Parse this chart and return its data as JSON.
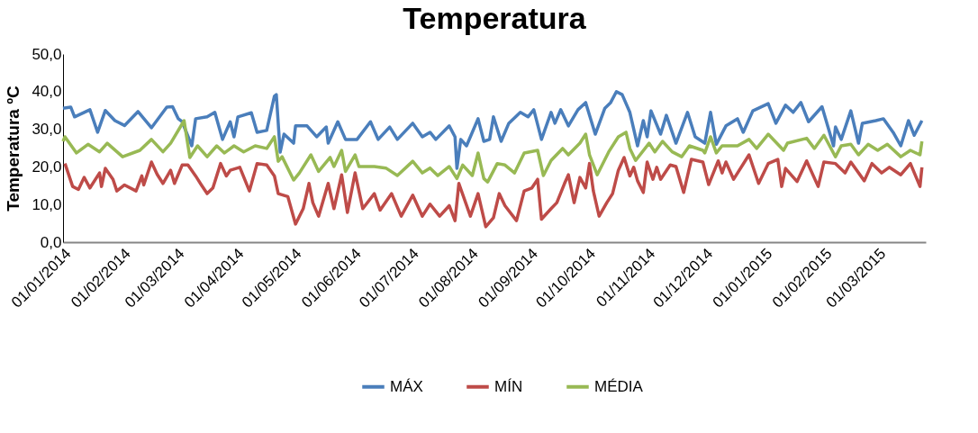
{
  "chart_data": {
    "type": "line",
    "title": "Temperatura",
    "ylabel": "Temperatura ºC",
    "xlim": [
      "2014-01-01",
      "2015-03-26"
    ],
    "ylim": [
      0,
      50
    ],
    "yticks": [
      {
        "value": 0,
        "label": "0,0"
      },
      {
        "value": 10,
        "label": "10,0"
      },
      {
        "value": 20,
        "label": "20,0"
      },
      {
        "value": 30,
        "label": "30,0"
      },
      {
        "value": 40,
        "label": "40,0"
      },
      {
        "value": 50,
        "label": "50,0"
      }
    ],
    "xticks": [
      {
        "value": "2014-01-01",
        "label": "01/01/2014"
      },
      {
        "value": "2014-02-01",
        "label": "01/02/2014"
      },
      {
        "value": "2014-03-01",
        "label": "01/03/2014"
      },
      {
        "value": "2014-04-01",
        "label": "01/04/2014"
      },
      {
        "value": "2014-05-01",
        "label": "01/05/2014"
      },
      {
        "value": "2014-06-01",
        "label": "01/06/2014"
      },
      {
        "value": "2014-07-01",
        "label": "01/07/2014"
      },
      {
        "value": "2014-08-01",
        "label": "01/08/2014"
      },
      {
        "value": "2014-09-01",
        "label": "01/09/2014"
      },
      {
        "value": "2014-10-01",
        "label": "01/10/2014"
      },
      {
        "value": "2014-11-01",
        "label": "01/11/2014"
      },
      {
        "value": "2014-12-01",
        "label": "01/12/2014"
      },
      {
        "value": "2015-01-01",
        "label": "01/01/2015"
      },
      {
        "value": "2015-02-01",
        "label": "01/02/2015"
      },
      {
        "value": "2015-03-01",
        "label": "01/03/2015"
      }
    ],
    "grid": false,
    "legend": "bottom",
    "line_style": "solid",
    "marker": "none",
    "series": [
      {
        "name": "MÁX",
        "color": "#4a7ebb",
        "x": [
          "2014-01-01",
          "2014-01-05",
          "2014-01-07",
          "2014-01-15",
          "2014-01-19",
          "2014-01-23",
          "2014-01-28",
          "2014-02-02",
          "2014-02-09",
          "2014-02-16",
          "2014-02-24",
          "2014-02-27",
          "2014-03-02",
          "2014-03-04",
          "2014-03-09",
          "2014-03-11",
          "2014-03-17",
          "2014-03-21",
          "2014-03-25",
          "2014-03-29",
          "2014-03-31",
          "2014-04-02",
          "2014-04-09",
          "2014-04-12",
          "2014-04-17",
          "2014-04-21",
          "2014-04-22",
          "2014-04-24",
          "2014-04-26",
          "2014-05-01",
          "2014-05-02",
          "2014-05-08",
          "2014-05-13",
          "2014-05-18",
          "2014-05-19",
          "2014-05-24",
          "2014-05-28",
          "2014-06-03",
          "2014-06-10",
          "2014-06-14",
          "2014-06-20",
          "2014-06-24",
          "2014-07-02",
          "2014-07-07",
          "2014-07-11",
          "2014-07-14",
          "2014-07-21",
          "2014-07-24",
          "2014-07-25",
          "2014-07-27",
          "2014-07-30",
          "2014-08-05",
          "2014-08-08",
          "2014-08-11",
          "2014-08-13",
          "2014-08-17",
          "2014-08-21",
          "2014-08-27",
          "2014-08-31",
          "2014-09-03",
          "2014-09-07",
          "2014-09-12",
          "2014-09-14",
          "2014-09-17",
          "2014-09-21",
          "2014-09-26",
          "2014-09-30",
          "2014-10-05",
          "2014-10-10",
          "2014-10-13",
          "2014-10-16",
          "2014-10-19",
          "2014-10-23",
          "2014-10-27",
          "2014-10-30",
          "2014-11-01",
          "2014-11-03",
          "2014-11-08",
          "2014-11-11",
          "2014-11-16",
          "2014-11-22",
          "2014-11-26",
          "2014-12-01",
          "2014-12-04",
          "2014-12-07",
          "2014-12-12",
          "2014-12-18",
          "2014-12-21",
          "2014-12-26",
          "2015-01-03",
          "2015-01-07",
          "2015-01-12",
          "2015-01-16",
          "2015-01-20",
          "2015-01-24",
          "2015-01-31",
          "2015-02-06",
          "2015-02-07",
          "2015-02-10",
          "2015-02-15",
          "2015-02-19",
          "2015-02-21",
          "2015-02-28",
          "2015-03-04",
          "2015-03-09",
          "2015-03-13",
          "2015-03-17",
          "2015-03-20",
          "2015-03-24"
        ],
        "values": [
          35.6,
          35.9,
          33.3,
          35.2,
          29.2,
          35.0,
          32.3,
          31.0,
          34.7,
          30.4,
          35.9,
          36.0,
          32.8,
          32.0,
          25.6,
          32.8,
          33.3,
          34.5,
          27.3,
          32.0,
          28.0,
          33.3,
          34.4,
          29.2,
          29.7,
          38.8,
          39.2,
          23.9,
          28.7,
          26.3,
          30.9,
          30.9,
          28.0,
          30.6,
          26.3,
          32.0,
          27.3,
          27.3,
          32.0,
          27.3,
          30.6,
          27.3,
          31.6,
          28.0,
          29.2,
          27.3,
          30.9,
          28.0,
          19.6,
          27.3,
          25.6,
          32.8,
          26.8,
          27.3,
          33.3,
          26.8,
          31.6,
          34.5,
          33.3,
          35.2,
          27.3,
          34.5,
          31.6,
          35.2,
          30.9,
          35.2,
          37.1,
          28.7,
          35.6,
          37.1,
          40.0,
          39.2,
          34.5,
          25.6,
          32.3,
          28.0,
          34.9,
          28.7,
          33.7,
          26.3,
          34.5,
          28.0,
          26.3,
          34.5,
          26.0,
          30.9,
          32.8,
          29.2,
          34.9,
          36.8,
          31.6,
          36.4,
          34.5,
          37.1,
          32.0,
          36.0,
          25.6,
          30.6,
          27.3,
          34.9,
          26.3,
          31.6,
          32.3,
          32.8,
          29.2,
          25.6,
          32.3,
          28.4,
          32.3
        ]
      },
      {
        "name": "MÍN",
        "color": "#be4b48",
        "x": [
          "2014-01-02",
          "2014-01-06",
          "2014-01-09",
          "2014-01-12",
          "2014-01-15",
          "2014-01-20",
          "2014-01-21",
          "2014-01-23",
          "2014-01-27",
          "2014-01-29",
          "2014-02-02",
          "2014-02-08",
          "2014-02-11",
          "2014-02-12",
          "2014-02-16",
          "2014-02-19",
          "2014-02-22",
          "2014-02-26",
          "2014-02-28",
          "2014-03-04",
          "2014-03-07",
          "2014-03-11",
          "2014-03-14",
          "2014-03-17",
          "2014-03-20",
          "2014-03-24",
          "2014-03-27",
          "2014-03-29",
          "2014-04-03",
          "2014-04-08",
          "2014-04-12",
          "2014-04-17",
          "2014-04-21",
          "2014-04-23",
          "2014-04-28",
          "2014-05-02",
          "2014-05-06",
          "2014-05-09",
          "2014-05-11",
          "2014-05-14",
          "2014-05-19",
          "2014-05-22",
          "2014-05-26",
          "2014-05-29",
          "2014-06-02",
          "2014-06-06",
          "2014-06-12",
          "2014-06-15",
          "2014-06-21",
          "2014-06-26",
          "2014-07-02",
          "2014-07-07",
          "2014-07-11",
          "2014-07-16",
          "2014-07-21",
          "2014-07-24",
          "2014-07-26",
          "2014-08-01",
          "2014-08-05",
          "2014-08-09",
          "2014-08-13",
          "2014-08-16",
          "2014-08-19",
          "2014-08-25",
          "2014-08-29",
          "2014-09-02",
          "2014-09-05",
          "2014-09-07",
          "2014-09-12",
          "2014-09-15",
          "2014-09-19",
          "2014-09-21",
          "2014-09-24",
          "2014-09-27",
          "2014-09-30",
          "2014-10-02",
          "2014-10-04",
          "2014-10-07",
          "2014-10-11",
          "2014-10-14",
          "2014-10-17",
          "2014-10-20",
          "2014-10-23",
          "2014-10-25",
          "2014-10-27",
          "2014-10-30",
          "2014-11-01",
          "2014-11-04",
          "2014-11-06",
          "2014-11-08",
          "2014-11-13",
          "2014-11-16",
          "2014-11-20",
          "2014-11-24",
          "2014-11-30",
          "2014-12-03",
          "2014-12-08",
          "2014-12-10",
          "2014-12-12",
          "2014-12-16",
          "2014-12-24",
          "2014-12-29",
          "2015-01-03",
          "2015-01-08",
          "2015-01-10",
          "2015-01-12",
          "2015-01-18",
          "2015-01-23",
          "2015-01-29",
          "2015-02-01",
          "2015-02-07",
          "2015-02-12",
          "2015-02-15",
          "2015-02-22",
          "2015-02-26",
          "2015-03-03",
          "2015-03-07",
          "2015-03-13",
          "2015-03-18",
          "2015-03-23",
          "2015-03-24"
        ],
        "values": [
          20.9,
          14.8,
          14.0,
          17.2,
          14.4,
          18.4,
          14.8,
          19.6,
          16.7,
          13.6,
          15.2,
          13.6,
          17.6,
          15.2,
          21.3,
          18.0,
          15.6,
          19.1,
          15.6,
          20.5,
          20.5,
          17.6,
          15.2,
          12.9,
          14.4,
          20.9,
          17.6,
          19.1,
          19.9,
          13.6,
          20.9,
          20.5,
          17.6,
          12.9,
          12.1,
          4.8,
          8.9,
          15.6,
          10.5,
          6.9,
          15.6,
          8.9,
          17.9,
          7.9,
          18.4,
          8.9,
          12.9,
          8.5,
          12.9,
          6.9,
          12.5,
          6.9,
          10.1,
          6.9,
          9.7,
          5.7,
          15.6,
          6.9,
          12.9,
          4.1,
          6.5,
          12.9,
          9.7,
          5.7,
          13.6,
          14.4,
          16.7,
          6.1,
          8.9,
          10.5,
          15.6,
          17.9,
          10.5,
          17.2,
          14.4,
          20.9,
          13.6,
          6.9,
          10.5,
          12.9,
          19.1,
          22.5,
          17.6,
          19.9,
          16.3,
          13.2,
          21.3,
          16.7,
          19.9,
          16.7,
          20.5,
          20.1,
          13.2,
          22.0,
          21.3,
          15.3,
          21.6,
          18.4,
          21.3,
          16.7,
          23.2,
          15.6,
          20.9,
          22.0,
          14.8,
          19.6,
          16.1,
          21.6,
          14.8,
          21.3,
          20.9,
          18.4,
          21.3,
          16.3,
          20.9,
          18.4,
          19.9,
          17.9,
          20.9,
          14.8,
          19.9
        ]
      },
      {
        "name": "MÉDIA",
        "color": "#98b954",
        "x": [
          "2014-01-01",
          "2014-01-02",
          "2014-01-08",
          "2014-01-14",
          "2014-01-20",
          "2014-01-24",
          "2014-02-01",
          "2014-02-10",
          "2014-02-16",
          "2014-02-22",
          "2014-02-26",
          "2014-03-05",
          "2014-03-08",
          "2014-03-12",
          "2014-03-17",
          "2014-03-22",
          "2014-03-26",
          "2014-03-31",
          "2014-04-05",
          "2014-04-11",
          "2014-04-17",
          "2014-04-21",
          "2014-04-23",
          "2014-04-25",
          "2014-05-01",
          "2014-05-04",
          "2014-05-10",
          "2014-05-14",
          "2014-05-20",
          "2014-05-22",
          "2014-05-26",
          "2014-05-28",
          "2014-06-02",
          "2014-06-04",
          "2014-06-12",
          "2014-06-18",
          "2014-06-24",
          "2014-07-02",
          "2014-07-07",
          "2014-07-11",
          "2014-07-15",
          "2014-07-21",
          "2014-07-25",
          "2014-07-28",
          "2014-08-02",
          "2014-08-05",
          "2014-08-08",
          "2014-08-10",
          "2014-08-15",
          "2014-08-19",
          "2014-08-24",
          "2014-08-29",
          "2014-09-05",
          "2014-09-08",
          "2014-09-12",
          "2014-09-18",
          "2014-09-21",
          "2014-09-27",
          "2014-09-30",
          "2014-10-02",
          "2014-10-06",
          "2014-10-12",
          "2014-10-17",
          "2014-10-21",
          "2014-10-23",
          "2014-10-26",
          "2014-11-02",
          "2014-11-05",
          "2014-11-09",
          "2014-11-14",
          "2014-11-19",
          "2014-11-23",
          "2014-11-30",
          "2014-12-01",
          "2014-12-04",
          "2014-12-07",
          "2014-12-10",
          "2014-12-18",
          "2014-12-24",
          "2014-12-28",
          "2015-01-03",
          "2015-01-11",
          "2015-01-13",
          "2015-01-23",
          "2015-01-27",
          "2015-02-01",
          "2015-02-07",
          "2015-02-10",
          "2015-02-15",
          "2015-02-19",
          "2015-02-24",
          "2015-03-01",
          "2015-03-06",
          "2015-03-13",
          "2015-03-18",
          "2015-03-23",
          "2015-03-24"
        ],
        "values": [
          26.8,
          28.0,
          23.7,
          26.0,
          24.0,
          26.3,
          22.7,
          24.4,
          27.3,
          24.0,
          26.3,
          32.3,
          22.5,
          25.6,
          22.7,
          25.6,
          23.7,
          25.6,
          24.0,
          25.6,
          24.9,
          28.0,
          21.5,
          22.7,
          16.5,
          18.4,
          23.2,
          18.8,
          22.5,
          20.1,
          24.4,
          18.8,
          23.2,
          20.1,
          20.1,
          19.7,
          17.7,
          21.5,
          18.4,
          19.7,
          17.7,
          20.1,
          16.9,
          20.5,
          17.7,
          23.7,
          16.9,
          16.0,
          20.9,
          20.5,
          18.4,
          23.7,
          24.4,
          17.7,
          21.7,
          24.9,
          23.2,
          26.3,
          28.7,
          23.2,
          17.9,
          24.0,
          28.0,
          29.2,
          24.9,
          21.7,
          26.3,
          24.0,
          26.8,
          24.0,
          22.7,
          25.6,
          24.4,
          23.7,
          28.0,
          23.7,
          25.6,
          25.6,
          27.3,
          24.9,
          28.7,
          24.4,
          26.3,
          27.6,
          24.9,
          28.4,
          22.7,
          25.6,
          26.0,
          23.2,
          26.0,
          24.4,
          26.0,
          22.7,
          24.4,
          23.2,
          26.8
        ]
      }
    ]
  }
}
